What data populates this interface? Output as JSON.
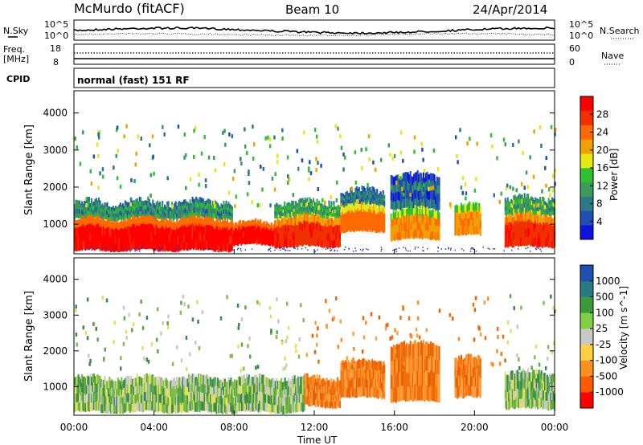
{
  "header": {
    "station": "McMurdo (fitACF)",
    "beam": "Beam 10",
    "date": "24/Apr/2014"
  },
  "status_panels": {
    "nsky_label": "N.Sky",
    "nsearch_label": "N.Search",
    "noise_ticks_left": [
      "10^5",
      "10^0"
    ],
    "noise_ticks_right": [
      "10^5",
      "10^0"
    ],
    "freq_label": "Freq.",
    "freq_unit": "[MHz]",
    "freq_ticks": [
      "18",
      "8"
    ],
    "nave_label": "Nave",
    "nave_ticks": [
      "60",
      "0"
    ],
    "cpid_label": "CPID",
    "cpid_value": "normal (fast) 151 RF"
  },
  "colors": {
    "power": [
      "#1010e0",
      "#1f4fb0",
      "#2a7a86",
      "#3c9a5a",
      "#2ec02e",
      "#e6e614",
      "#f0a000",
      "#ff6a00",
      "#f03000",
      "#ff0000"
    ],
    "velocity": [
      "#ff0000",
      "#ff5a00",
      "#ff9020",
      "#ffd040",
      "#c8c8c8",
      "#7fd046",
      "#3a9a3a",
      "#2a7a86",
      "#1f4fb0"
    ],
    "velocity_main": [
      "#3a8a4a",
      "#5aa84a",
      "#7fc046",
      "#c8c8c8",
      "#e0e060"
    ],
    "velocity_after": [
      "#ff8a20",
      "#f07010",
      "#ffa040",
      "#e86000"
    ],
    "scatter": "#1e3cc8"
  },
  "chart_data": [
    {
      "type": "heatmap",
      "panel": "power",
      "ylabel": "Slant Range [km]",
      "ylim": [
        200,
        4600
      ],
      "yticks": [
        "1000",
        "2000",
        "3000",
        "4000"
      ],
      "colorbar_label": "Power [dB]",
      "colorbar_ticks": [
        "4",
        "8",
        "12",
        "16",
        "20",
        "24",
        "28"
      ],
      "colorbar_range": [
        0,
        32
      ],
      "bands": [
        {
          "t0": 0.0,
          "t1": 7.9,
          "r0": 300,
          "r1": 1150,
          "db": 30
        },
        {
          "t0": 7.9,
          "t1": 10.0,
          "r0": 450,
          "r1": 1050,
          "db": 30
        },
        {
          "t0": 10.0,
          "t1": 13.3,
          "r0": 400,
          "r1": 1200,
          "db": 28
        },
        {
          "t0": 13.3,
          "t1": 15.5,
          "r0": 800,
          "r1": 1500,
          "db": 24
        },
        {
          "t0": 15.8,
          "t1": 18.2,
          "r0": 600,
          "r1": 1400,
          "db": 22
        },
        {
          "t0": 19.0,
          "t1": 20.3,
          "r0": 700,
          "r1": 1500,
          "db": 22
        },
        {
          "t0": 21.5,
          "t1": 24.0,
          "r0": 400,
          "r1": 1250,
          "db": 28
        }
      ],
      "fringe": [
        {
          "t0": 0.0,
          "t1": 7.9,
          "r0": 1150,
          "r1": 1600,
          "db": 10
        },
        {
          "t0": 10.0,
          "t1": 13.3,
          "r0": 1200,
          "r1": 1600,
          "db": 12
        },
        {
          "t0": 13.3,
          "t1": 15.5,
          "r0": 1500,
          "r1": 1900,
          "db": 8
        },
        {
          "t0": 15.8,
          "t1": 18.2,
          "r0": 1400,
          "r1": 2300,
          "db": 6
        },
        {
          "t0": 21.5,
          "t1": 24.0,
          "r0": 1250,
          "r1": 1700,
          "db": 12
        }
      ]
    },
    {
      "type": "heatmap",
      "panel": "velocity",
      "ylabel": "Slant Range [km]",
      "xlabel": "Time UT",
      "xlim": [
        0,
        24
      ],
      "xticks": [
        "00:00",
        "04:00",
        "08:00",
        "12:00",
        "16:00",
        "20:00",
        "00:00"
      ],
      "ylim": [
        200,
        4600
      ],
      "yticks": [
        "1000",
        "2000",
        "3000",
        "4000"
      ],
      "colorbar_label": "Velocity [m s^-1]",
      "colorbar_ticks": [
        "1000",
        "500",
        "100",
        "25",
        "-25",
        "-100",
        "-500",
        "-1000"
      ],
      "bands": [
        {
          "t0": 0.0,
          "t1": 11.5,
          "r0": 300,
          "r1": 1250,
          "v": 50
        },
        {
          "t0": 11.5,
          "t1": 13.3,
          "r0": 450,
          "r1": 1250,
          "v": -300
        },
        {
          "t0": 13.3,
          "t1": 15.5,
          "r0": 700,
          "r1": 1700,
          "v": -300
        },
        {
          "t0": 15.8,
          "t1": 18.2,
          "r0": 600,
          "r1": 2200,
          "v": -300
        },
        {
          "t0": 19.0,
          "t1": 20.3,
          "r0": 700,
          "r1": 1800,
          "v": -300
        },
        {
          "t0": 21.5,
          "t1": 24.0,
          "r0": 400,
          "r1": 1400,
          "v": 80
        }
      ]
    }
  ]
}
